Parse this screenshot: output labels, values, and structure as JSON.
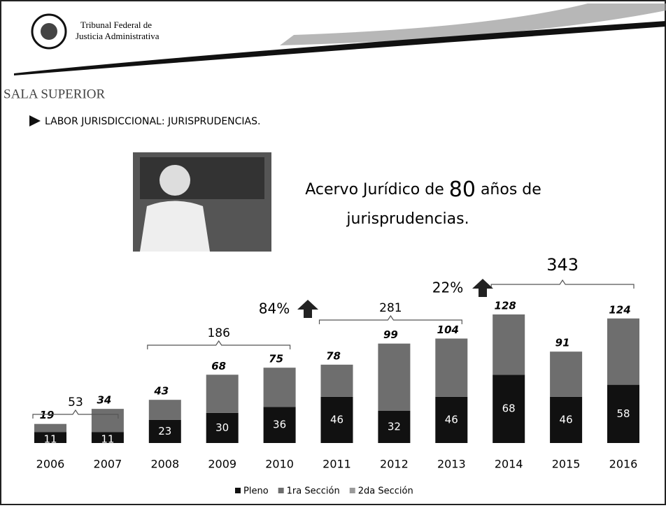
{
  "header": {
    "line1": "Tribunal Federal de",
    "line2": "Justicia Administrativa"
  },
  "section": "SALA SUPERIOR",
  "bullet": "LABOR JURISDICCIONAL: JURISPRUDENCIAS.",
  "headline": {
    "before": "Acervo Jurídico de",
    "number": "80",
    "after": "años de",
    "line2": "jurisprudencias."
  },
  "chart_data": {
    "type": "stacked_bar",
    "categories": [
      "2006",
      "2007",
      "2008",
      "2009",
      "2010",
      "2011",
      "2012",
      "2013",
      "2014",
      "2015",
      "2016"
    ],
    "series": [
      {
        "name": "Pleno",
        "color": "#111111",
        "values": [
          11,
          11,
          23,
          30,
          36,
          46,
          32,
          46,
          68,
          46,
          58
        ]
      },
      {
        "name": "1ra Sección",
        "color": "#6e6e6e",
        "values": [
          8,
          23,
          20,
          38,
          39,
          32,
          67,
          58,
          60,
          45,
          66
        ]
      },
      {
        "name": "2da Sección",
        "color": "#9a9a9a",
        "values": [
          0,
          0,
          0,
          0,
          0,
          0,
          0,
          0,
          0,
          0,
          0
        ]
      }
    ],
    "totals": [
      19,
      34,
      43,
      68,
      75,
      78,
      99,
      104,
      128,
      91,
      124
    ],
    "group_totals": [
      53,
      186,
      281,
      343
    ],
    "growth": [
      "84%",
      "22%"
    ],
    "ylim": [
      0,
      128
    ]
  }
}
